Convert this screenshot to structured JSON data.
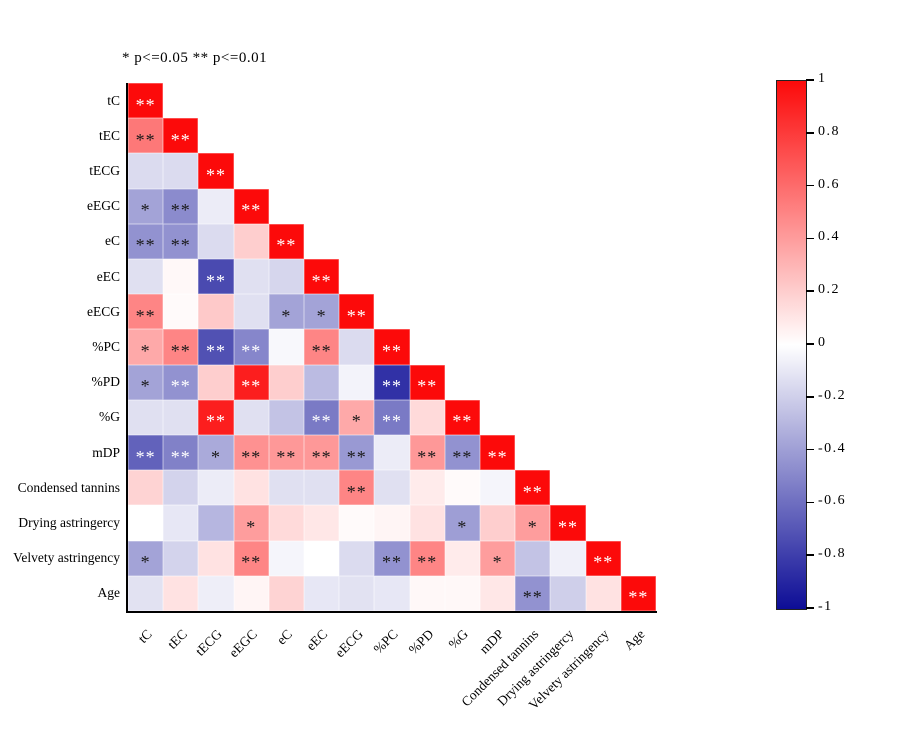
{
  "title": "* p<=0.05  ** p<=0.01",
  "colorbar": {
    "ticks": [
      "1",
      "0.8",
      "0.6",
      "0.4",
      "0.2",
      "0",
      "-0.2",
      "-0.4",
      "-0.6",
      "-0.8",
      "-1"
    ],
    "max_color": "#fc0a0a",
    "mid_color": "#ffffff",
    "min_color": "#0d0d96"
  },
  "chart_data": {
    "type": "heatmap",
    "subtype": "lower-triangular correlation matrix",
    "title": "* p<=0.05  ** p<=0.01",
    "significance_legend": {
      "*": "p<=0.05",
      "**": "p<=0.01"
    },
    "value_range": [
      -1,
      1
    ],
    "legend_position": "right colorbar",
    "categories": [
      "tC",
      "tEC",
      "tECG",
      "eEGC",
      "eC",
      "eEC",
      "eECG",
      "%PC",
      "%PD",
      "%G",
      "mDP",
      "Condensed tannins",
      "Drying astringercy",
      "Velvety astringency",
      "Age"
    ],
    "cell_format": "[correlation_estimate, significance, white_stars_flag]",
    "rows": [
      {
        "label": "tC",
        "cells": [
          [
            1,
            "**",
            1
          ]
        ]
      },
      {
        "label": "tEC",
        "cells": [
          [
            0.55,
            "**",
            0
          ],
          [
            1,
            "**",
            1
          ]
        ]
      },
      {
        "label": "tECG",
        "cells": [
          [
            -0.15,
            "",
            0
          ],
          [
            -0.15,
            "",
            0
          ],
          [
            1,
            "**",
            1
          ]
        ]
      },
      {
        "label": "eEGC",
        "cells": [
          [
            -0.38,
            "*",
            0
          ],
          [
            -0.48,
            "**",
            0
          ],
          [
            -0.08,
            "",
            0
          ],
          [
            1,
            "**",
            1
          ]
        ]
      },
      {
        "label": "eC",
        "cells": [
          [
            -0.45,
            "**",
            0
          ],
          [
            -0.45,
            "**",
            0
          ],
          [
            -0.15,
            "",
            0
          ],
          [
            0.2,
            "",
            0
          ],
          [
            1,
            "**",
            1
          ]
        ]
      },
      {
        "label": "eEC",
        "cells": [
          [
            -0.13,
            "",
            0
          ],
          [
            0.03,
            "",
            0
          ],
          [
            -0.75,
            "**",
            1
          ],
          [
            -0.13,
            "",
            0
          ],
          [
            -0.17,
            "",
            0
          ],
          [
            1,
            "**",
            1
          ]
        ]
      },
      {
        "label": "eECG",
        "cells": [
          [
            0.5,
            "**",
            0
          ],
          [
            0.02,
            "",
            0
          ],
          [
            0.22,
            "",
            0
          ],
          [
            -0.13,
            "",
            0
          ],
          [
            -0.38,
            "*",
            0
          ],
          [
            -0.38,
            "*",
            0
          ],
          [
            1,
            "**",
            1
          ]
        ]
      },
      {
        "label": "%PC",
        "cells": [
          [
            0.35,
            "*",
            0
          ],
          [
            0.5,
            "**",
            0
          ],
          [
            -0.72,
            "**",
            1
          ],
          [
            -0.5,
            "**",
            1
          ],
          [
            -0.03,
            "",
            0
          ],
          [
            0.5,
            "**",
            0
          ],
          [
            -0.15,
            "",
            0
          ],
          [
            1,
            "**",
            1
          ]
        ]
      },
      {
        "label": "%PD",
        "cells": [
          [
            -0.38,
            "*",
            0
          ],
          [
            -0.45,
            "**",
            1
          ],
          [
            0.2,
            "",
            0
          ],
          [
            0.92,
            "**",
            1
          ],
          [
            0.2,
            "",
            0
          ],
          [
            -0.28,
            "",
            0
          ],
          [
            -0.05,
            "",
            0
          ],
          [
            -0.85,
            "**",
            1
          ],
          [
            1,
            "**",
            1
          ]
        ]
      },
      {
        "label": "%G",
        "cells": [
          [
            -0.13,
            "",
            0
          ],
          [
            -0.13,
            "",
            0
          ],
          [
            0.92,
            "**",
            1
          ],
          [
            -0.13,
            "",
            0
          ],
          [
            -0.25,
            "",
            0
          ],
          [
            -0.55,
            "**",
            1
          ],
          [
            0.35,
            "*",
            0
          ],
          [
            -0.55,
            "**",
            1
          ],
          [
            0.15,
            "",
            0
          ],
          [
            1,
            "**",
            1
          ]
        ]
      },
      {
        "label": "mDP",
        "cells": [
          [
            -0.65,
            "**",
            1
          ],
          [
            -0.52,
            "**",
            1
          ],
          [
            -0.35,
            "*",
            0
          ],
          [
            0.45,
            "**",
            0
          ],
          [
            0.42,
            "**",
            0
          ],
          [
            0.42,
            "**",
            0
          ],
          [
            -0.42,
            "**",
            0
          ],
          [
            -0.08,
            "",
            0
          ],
          [
            0.42,
            "**",
            0
          ],
          [
            -0.45,
            "**",
            0
          ],
          [
            1,
            "**",
            1
          ]
        ]
      },
      {
        "label": "Condensed tannins",
        "cells": [
          [
            0.18,
            "",
            0
          ],
          [
            -0.18,
            "",
            0
          ],
          [
            -0.08,
            "",
            0
          ],
          [
            0.12,
            "",
            0
          ],
          [
            -0.13,
            "",
            0
          ],
          [
            -0.13,
            "",
            0
          ],
          [
            0.5,
            "**",
            0
          ],
          [
            -0.13,
            "",
            0
          ],
          [
            0.08,
            "",
            0
          ],
          [
            0.02,
            "",
            0
          ],
          [
            -0.04,
            "",
            0
          ],
          [
            1,
            "**",
            1
          ]
        ]
      },
      {
        "label": "Drying astringercy",
        "cells": [
          [
            0,
            "",
            0
          ],
          [
            -0.1,
            "",
            0
          ],
          [
            -0.3,
            "",
            0
          ],
          [
            0.4,
            "*",
            0
          ],
          [
            0.15,
            "",
            0
          ],
          [
            0.1,
            "",
            0
          ],
          [
            0.02,
            "",
            0
          ],
          [
            0.04,
            "",
            0
          ],
          [
            0.12,
            "",
            0
          ],
          [
            -0.4,
            "*",
            0
          ],
          [
            0.2,
            "",
            0
          ],
          [
            0.4,
            "*",
            0
          ],
          [
            1,
            "**",
            1
          ]
        ]
      },
      {
        "label": "Velvety astringency",
        "cells": [
          [
            -0.38,
            "*",
            0
          ],
          [
            -0.18,
            "",
            0
          ],
          [
            0.12,
            "",
            0
          ],
          [
            0.5,
            "**",
            0
          ],
          [
            -0.04,
            "",
            0
          ],
          [
            0,
            "",
            0
          ],
          [
            -0.15,
            "",
            0
          ],
          [
            -0.45,
            "**",
            0
          ],
          [
            0.5,
            "**",
            0
          ],
          [
            0.08,
            "",
            0
          ],
          [
            0.4,
            "*",
            0
          ],
          [
            -0.25,
            "",
            0
          ],
          [
            -0.06,
            "",
            0
          ],
          [
            1,
            "**",
            1
          ]
        ]
      },
      {
        "label": "Age",
        "cells": [
          [
            -0.12,
            "",
            0
          ],
          [
            0.12,
            "",
            0
          ],
          [
            -0.07,
            "",
            0
          ],
          [
            0.04,
            "",
            0
          ],
          [
            0.18,
            "",
            0
          ],
          [
            -0.1,
            "",
            0
          ],
          [
            -0.12,
            "",
            0
          ],
          [
            -0.1,
            "",
            0
          ],
          [
            0.03,
            "",
            0
          ],
          [
            0.03,
            "",
            0
          ],
          [
            0.1,
            "",
            0
          ],
          [
            -0.45,
            "**",
            0
          ],
          [
            -0.2,
            "",
            0
          ],
          [
            0.12,
            "",
            0
          ],
          [
            1,
            "**",
            1
          ]
        ]
      }
    ]
  }
}
